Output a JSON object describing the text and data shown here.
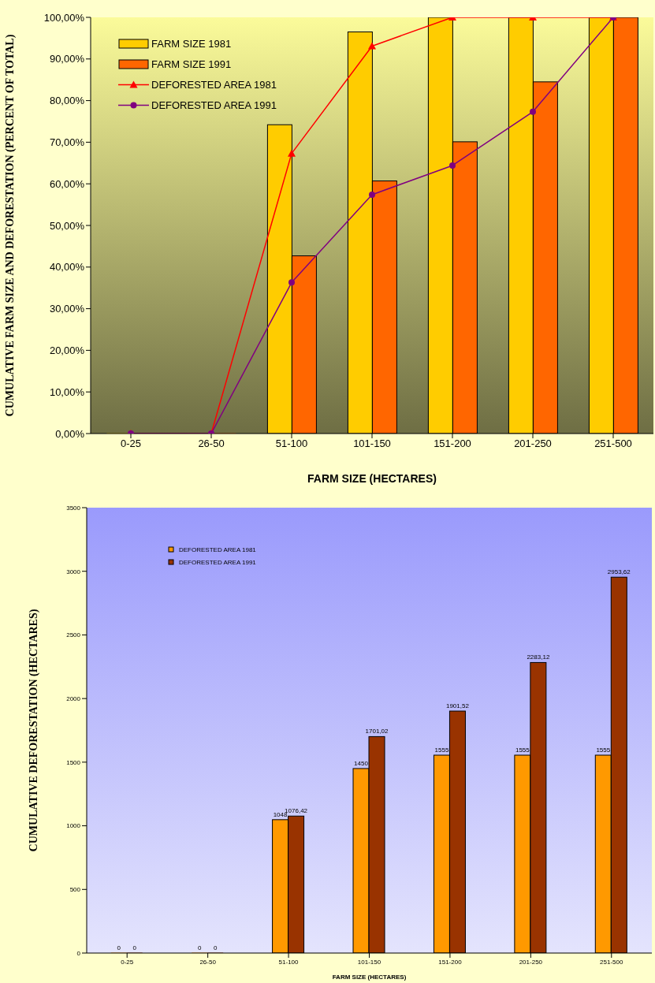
{
  "chart_data": [
    {
      "type": "bar",
      "xlabel": "FARM SIZE (HECTARES)",
      "ylabel": "CUMULATIVE FARM SIZE AND DEFORESTATION (PERCENT OF TOTAL)",
      "categories": [
        "0-25",
        "26-50",
        "51-100",
        "101-150",
        "151-200",
        "201-250",
        "251-500"
      ],
      "series": [
        {
          "name": "FARM SIZE 1981",
          "type": "bar",
          "color": "#ffcc00",
          "values": [
            0,
            0,
            74.2,
            96.5,
            100,
            100,
            100
          ]
        },
        {
          "name": "FARM SIZE 1991",
          "type": "bar",
          "color": "#ff6600",
          "values": [
            0,
            0,
            42.7,
            60.7,
            70.1,
            84.5,
            100
          ]
        },
        {
          "name": "DEFORESTED AREA 1981",
          "type": "line",
          "color": "#ff0000",
          "marker": "triangle",
          "values": [
            0,
            0,
            67.3,
            93.1,
            100,
            100,
            100
          ]
        },
        {
          "name": "DEFORESTED AREA 1991",
          "type": "line",
          "color": "#800080",
          "marker": "circle",
          "values": [
            0,
            0,
            36.3,
            57.4,
            64.4,
            77.3,
            100
          ]
        }
      ],
      "ylim": [
        0,
        100
      ],
      "yticks": [
        {
          "value": 0,
          "label": "0,00%"
        },
        {
          "value": 10,
          "label": "10,00%"
        },
        {
          "value": 20,
          "label": "20,00%"
        },
        {
          "value": 30,
          "label": "30,00%"
        },
        {
          "value": 40,
          "label": "40,00%"
        },
        {
          "value": 50,
          "label": "50,00%"
        },
        {
          "value": 60,
          "label": "60,00%"
        },
        {
          "value": 70,
          "label": "70,00%"
        },
        {
          "value": 80,
          "label": "80,00%"
        },
        {
          "value": 90,
          "label": "90,00%"
        },
        {
          "value": 100,
          "label": "100,00%"
        }
      ],
      "grid": false,
      "legend": "top left"
    },
    {
      "type": "bar",
      "xlabel": "FARM SIZE (HECTARES)",
      "ylabel": "CUMULATIVE DEFORESTATION (HECTARES)",
      "categories": [
        "0-25",
        "26-50",
        "51-100",
        "101-150",
        "151-200",
        "201-250",
        "251-500"
      ],
      "series": [
        {
          "name": "DEFORESTED AREA 1981",
          "color": "#ff9900",
          "values": [
            0,
            0,
            1048,
            1450,
            1555,
            1555,
            1555
          ],
          "value_labels": [
            "0",
            "0",
            "1048",
            "1450",
            "1555",
            "1555",
            "1555"
          ]
        },
        {
          "name": "DEFORESTED AREA 1991",
          "color": "#993300",
          "values": [
            0,
            0,
            1076.42,
            1701.02,
            1901.52,
            2283.12,
            2953.62
          ],
          "value_labels": [
            "0",
            "0",
            "1076,42",
            "1701,02",
            "1901,52",
            "2283,12",
            "2953,62"
          ]
        }
      ],
      "ylim": [
        0,
        3500
      ],
      "yticks": [
        0,
        500,
        1000,
        1500,
        2000,
        2500,
        3000,
        3500
      ],
      "grid": false,
      "legend": "top left"
    }
  ]
}
